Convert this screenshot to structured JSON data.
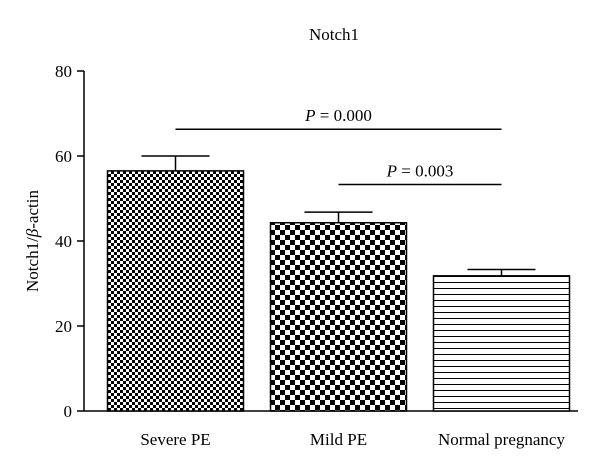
{
  "chart_data": {
    "type": "bar",
    "title": "Notch1",
    "ylabel_prefix": "Notch1/",
    "ylabel_italic": "β",
    "ylabel_suffix": "-actin",
    "xlabel": "",
    "categories": [
      "Severe PE",
      "Mild PE",
      "Normal pregnancy"
    ],
    "values": [
      56.5,
      44.3,
      31.8
    ],
    "error_upper": [
      60.0,
      46.8,
      33.3
    ],
    "patterns": [
      "fine-checker",
      "coarse-checker",
      "horizontal-lines"
    ],
    "ylim": [
      0,
      80
    ],
    "yticks": [
      0,
      20,
      40,
      60,
      80
    ],
    "grid": false,
    "legend": "none",
    "annotations": [
      {
        "italic": "P",
        "text": " = 0.000",
        "from": 0,
        "to": 2,
        "y": 66.3
      },
      {
        "italic": "P",
        "text": " = 0.003",
        "from": 1,
        "to": 2,
        "y": 53.3
      }
    ]
  }
}
